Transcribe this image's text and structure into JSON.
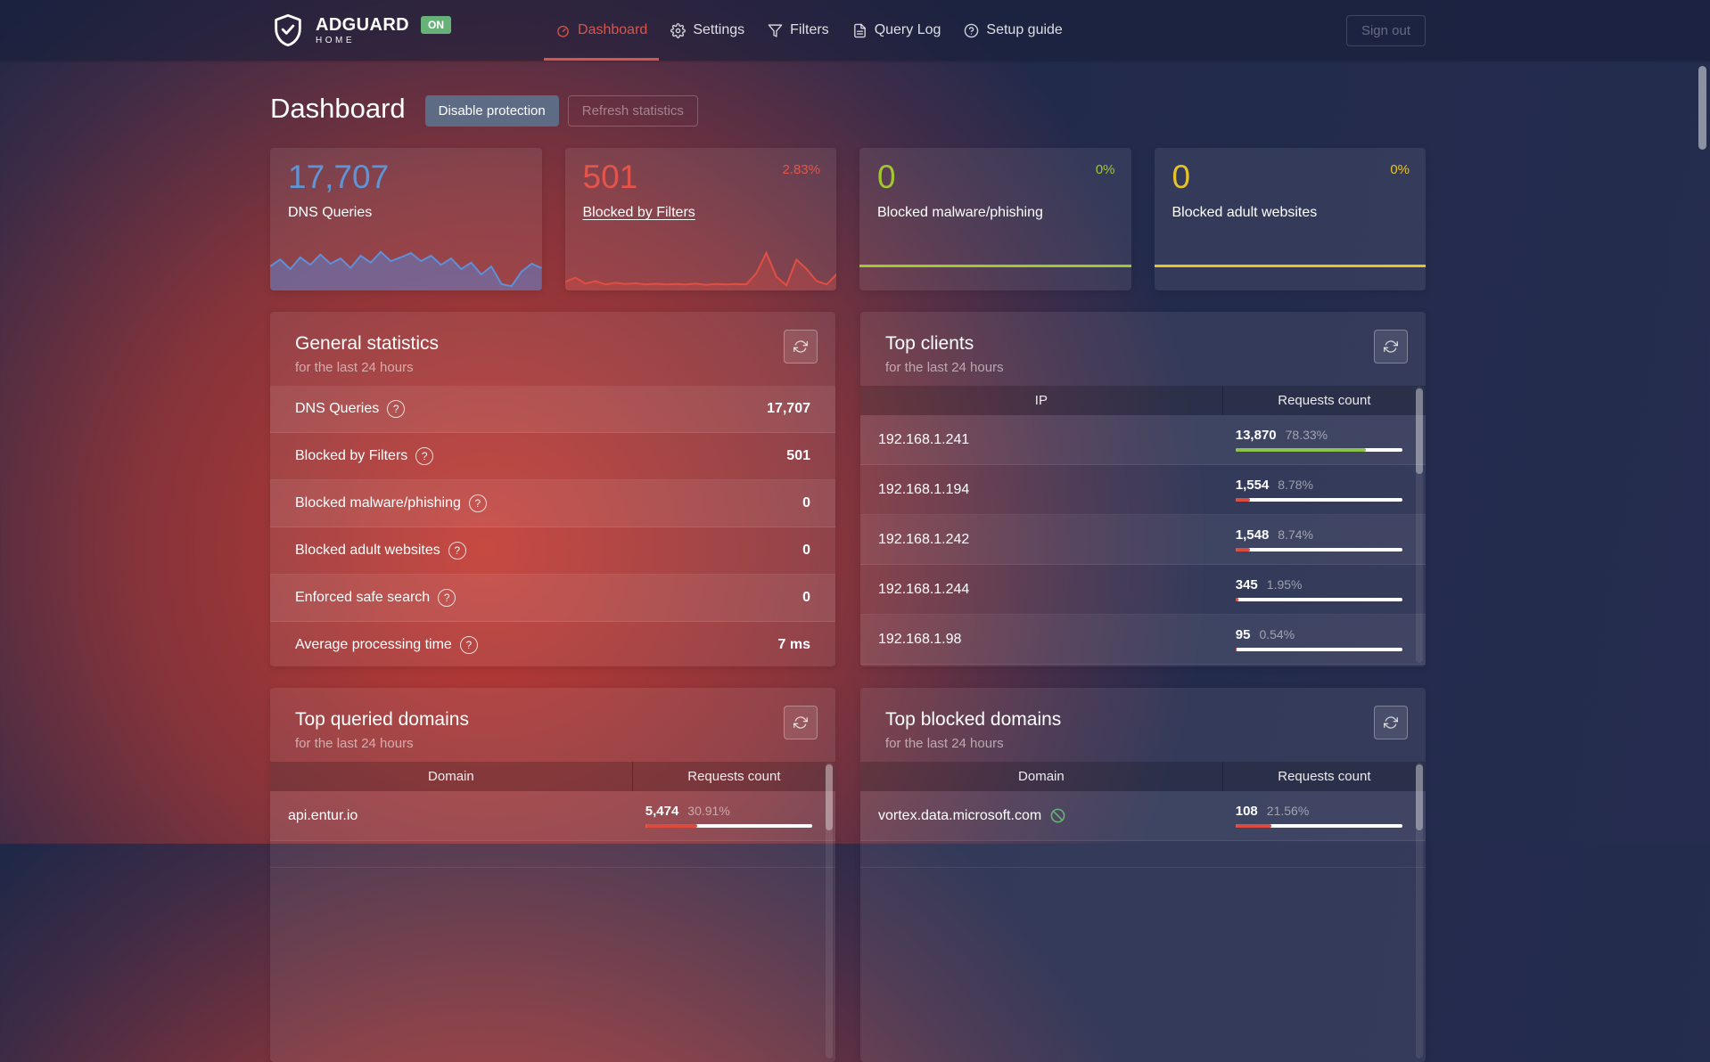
{
  "colors": {
    "accent_red": "#d7564b",
    "badge_green": "#67b279",
    "value_blue": "#5e95d6",
    "value_red": "#e3554a",
    "value_green": "#a3c52f",
    "value_yellow": "#e7c32a",
    "bar_green": "#8bc34a",
    "bar_red": "#dd4b3f"
  },
  "header": {
    "brand": "ADGUARD",
    "brand_sub": "HOME",
    "status_badge": "ON",
    "nav": [
      {
        "label": "Dashboard"
      },
      {
        "label": "Settings"
      },
      {
        "label": "Filters"
      },
      {
        "label": "Query Log"
      },
      {
        "label": "Setup guide"
      }
    ],
    "sign_out": "Sign out"
  },
  "page": {
    "title": "Dashboard",
    "disable_protection": "Disable protection",
    "refresh_statistics": "Refresh statistics"
  },
  "stat_cards": [
    {
      "value": "17,707",
      "label": "DNS Queries",
      "percent": "",
      "color": "#5e95d6"
    },
    {
      "value": "501",
      "label": "Blocked by Filters",
      "percent": "2.83%",
      "color": "#e3554a"
    },
    {
      "value": "0",
      "label": "Blocked malware/phishing",
      "percent": "0%",
      "color": "#a3c52f"
    },
    {
      "value": "0",
      "label": "Blocked adult websites",
      "percent": "0%",
      "color": "#e7c32a"
    }
  ],
  "sparklines": {
    "dns": {
      "stroke": "#5f8fd8",
      "fill": "rgba(95,125,200,0.55)",
      "points": [
        0.55,
        0.42,
        0.6,
        0.38,
        0.52,
        0.33,
        0.5,
        0.4,
        0.58,
        0.35,
        0.48,
        0.28,
        0.45,
        0.38,
        0.3,
        0.45,
        0.35,
        0.52,
        0.4,
        0.6,
        0.48,
        0.7,
        0.55,
        0.88,
        0.92,
        0.65,
        0.5,
        0.58
      ]
    },
    "blocked": {
      "stroke": "#e04f44",
      "fill": "rgba(226,80,70,0.28)",
      "points": [
        0.8,
        0.7,
        0.84,
        0.78,
        0.86,
        0.82,
        0.85,
        0.83,
        0.86,
        0.84,
        0.86,
        0.85,
        0.86,
        0.84,
        0.87,
        0.85,
        0.86,
        0.85,
        0.86,
        0.6,
        0.12,
        0.68,
        0.88,
        0.28,
        0.5,
        0.78,
        0.86,
        0.62
      ]
    }
  },
  "general_stats": {
    "title": "General statistics",
    "subtitle": "for the last 24 hours",
    "rows": [
      {
        "label": "DNS Queries",
        "value": "17,707"
      },
      {
        "label": "Blocked by Filters",
        "value": "501"
      },
      {
        "label": "Blocked malware/phishing",
        "value": "0"
      },
      {
        "label": "Blocked adult websites",
        "value": "0"
      },
      {
        "label": "Enforced safe search",
        "value": "0"
      },
      {
        "label": "Average processing time",
        "value": "7 ms"
      }
    ]
  },
  "top_clients": {
    "title": "Top clients",
    "subtitle": "for the last 24 hours",
    "col1": "IP",
    "col2": "Requests count",
    "rows": [
      {
        "name": "192.168.1.241",
        "count": "13,870",
        "percent": "78.33%",
        "pct": 78.33,
        "bar_color": "#8bc34a"
      },
      {
        "name": "192.168.1.194",
        "count": "1,554",
        "percent": "8.78%",
        "pct": 8.78,
        "bar_color": "#dd4b3f"
      },
      {
        "name": "192.168.1.242",
        "count": "1,548",
        "percent": "8.74%",
        "pct": 8.74,
        "bar_color": "#dd4b3f"
      },
      {
        "name": "192.168.1.244",
        "count": "345",
        "percent": "1.95%",
        "pct": 1.95,
        "bar_color": "#dd4b3f"
      },
      {
        "name": "192.168.1.98",
        "count": "95",
        "percent": "0.54%",
        "pct": 0.54,
        "bar_color": "#dd4b3f"
      }
    ]
  },
  "top_queried": {
    "title": "Top queried domains",
    "subtitle": "for the last 24 hours",
    "col1": "Domain",
    "col2": "Requests count",
    "rows": [
      {
        "name": "api.entur.io",
        "count": "5,474",
        "percent": "30.91%",
        "pct": 30.91,
        "bar_color": "#dd4b3f"
      }
    ]
  },
  "top_blocked": {
    "title": "Top blocked domains",
    "subtitle": "for the last 24 hours",
    "col1": "Domain",
    "col2": "Requests count",
    "rows": [
      {
        "name": "vortex.data.microsoft.com",
        "count": "108",
        "percent": "21.56%",
        "pct": 21.56,
        "bar_color": "#dd4b3f"
      }
    ]
  },
  "icons": {
    "help": "?"
  }
}
